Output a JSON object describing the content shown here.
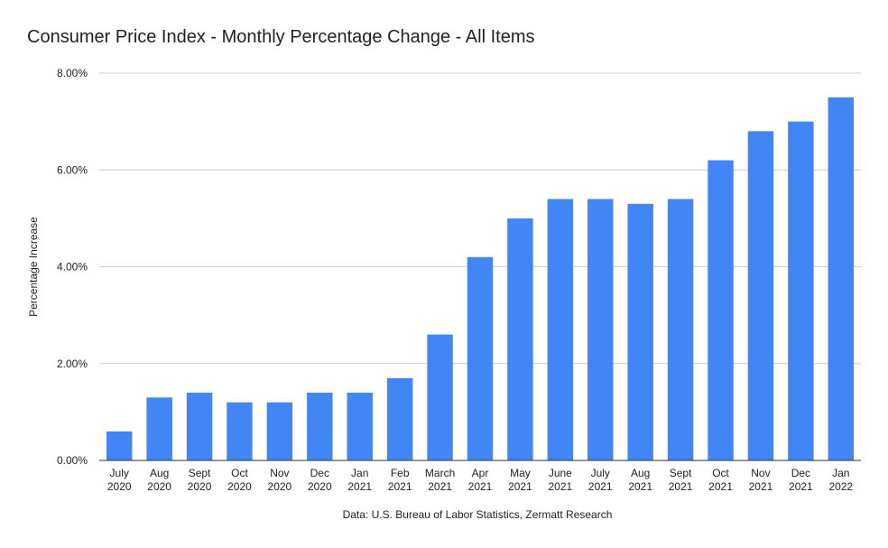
{
  "chart_data": {
    "type": "bar",
    "title": "Consumer Price Index - Monthly Percentage Change - All Items",
    "ylabel": "Percentage Increase",
    "xlabel": "Data: U.S. Bureau of Labor Statistics, Zermatt Research",
    "ylim": [
      0,
      8
    ],
    "yticks": [
      {
        "value": 0,
        "label": "0.00%"
      },
      {
        "value": 2,
        "label": "2.00%"
      },
      {
        "value": 4,
        "label": "4.00%"
      },
      {
        "value": 6,
        "label": "6.00%"
      },
      {
        "value": 8,
        "label": "8.00%"
      }
    ],
    "grid": true,
    "bar_color": "#4285f4",
    "categories": [
      [
        "July",
        "2020"
      ],
      [
        "Aug",
        "2020"
      ],
      [
        "Sept",
        "2020"
      ],
      [
        "Oct",
        "2020"
      ],
      [
        "Nov",
        "2020"
      ],
      [
        "Dec",
        "2020"
      ],
      [
        "Jan",
        "2021"
      ],
      [
        "Feb",
        "2021"
      ],
      [
        "March",
        "2021"
      ],
      [
        "Apr",
        "2021"
      ],
      [
        "May",
        "2021"
      ],
      [
        "June",
        "2021"
      ],
      [
        "July",
        "2021"
      ],
      [
        "Aug",
        "2021"
      ],
      [
        "Sept",
        "2021"
      ],
      [
        "Oct",
        "2021"
      ],
      [
        "Nov",
        "2021"
      ],
      [
        "Dec",
        "2021"
      ],
      [
        "Jan",
        "2022"
      ]
    ],
    "values": [
      0.6,
      1.3,
      1.4,
      1.2,
      1.2,
      1.4,
      1.4,
      1.7,
      2.6,
      4.2,
      5.0,
      5.4,
      5.4,
      5.3,
      5.4,
      6.2,
      6.8,
      7.0,
      7.5
    ]
  }
}
